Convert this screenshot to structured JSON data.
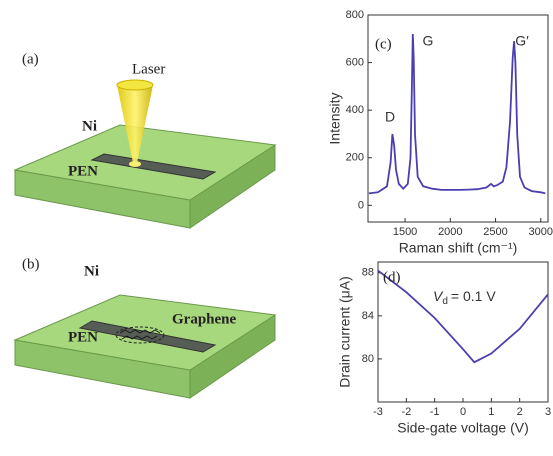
{
  "diagrams": {
    "a": {
      "label": "(a)",
      "laser": "Laser",
      "ni": "Ni",
      "pen": "PEN"
    },
    "b": {
      "label": "(b)",
      "ni": "Ni",
      "pen": "PEN",
      "graphene": "Graphene"
    }
  },
  "chart_data": [
    {
      "type": "line",
      "panel": "(c)",
      "xlabel": "Raman shift (cm⁻¹)",
      "ylabel": "Intensity",
      "color": "#4b3fb0",
      "x": [
        1100,
        1200,
        1300,
        1340,
        1360,
        1380,
        1400,
        1430,
        1480,
        1530,
        1560,
        1575,
        1585,
        1595,
        1610,
        1640,
        1700,
        1800,
        1900,
        2000,
        2100,
        2200,
        2300,
        2400,
        2450,
        2480,
        2520,
        2580,
        2620,
        2660,
        2690,
        2705,
        2720,
        2740,
        2770,
        2820,
        2900,
        3000,
        3050
      ],
      "values": [
        50,
        55,
        80,
        180,
        300,
        250,
        150,
        90,
        70,
        90,
        200,
        500,
        720,
        620,
        300,
        120,
        80,
        70,
        65,
        65,
        65,
        66,
        68,
        75,
        90,
        80,
        85,
        100,
        160,
        350,
        620,
        690,
        600,
        300,
        120,
        75,
        60,
        55,
        50
      ],
      "xlim": [
        1090,
        3080
      ],
      "xticks": [
        1500,
        2000,
        2500,
        3000
      ],
      "ylim": [
        -70,
        800
      ],
      "yticks": [
        0,
        200,
        400,
        600,
        800
      ],
      "annotations": [
        "D",
        "G",
        "G′"
      ]
    },
    {
      "type": "line",
      "panel": "(d)",
      "xlabel": "Side-gate voltage (V)",
      "ylabel": "Drain current (μA)",
      "color": "#4b3fb0",
      "x": [
        -3,
        -2,
        -1,
        0,
        0.4,
        1,
        2,
        3
      ],
      "values": [
        88.2,
        86.2,
        83.8,
        80.9,
        79.7,
        80.5,
        82.8,
        86.0
      ],
      "xlim": [
        -3,
        3
      ],
      "xticks": [
        -3,
        -2,
        -1,
        0,
        1,
        2,
        3
      ],
      "ylim": [
        76,
        89
      ],
      "yticks": [
        80,
        84,
        88
      ],
      "annotation": {
        "symbol": "V",
        "subscript": "d",
        "text": "= 0.1 V"
      }
    }
  ]
}
